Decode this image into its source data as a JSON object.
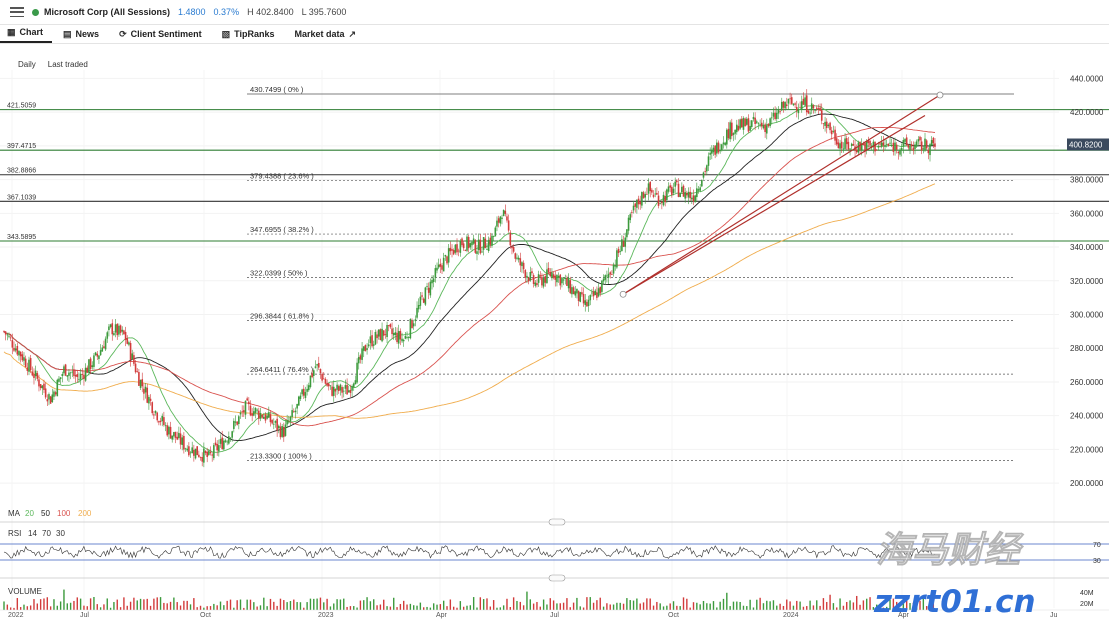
{
  "header": {
    "instrument": "Microsoft Corp (All Sessions)",
    "change": "1.4800",
    "change_pct": "0.37%",
    "high": "H 402.8400",
    "low": "L 395.7600"
  },
  "tabs": [
    {
      "label": "Chart",
      "icon": "chart-icon"
    },
    {
      "label": "News",
      "icon": "news-icon"
    },
    {
      "label": "Client Sentiment",
      "icon": "sentiment-icon"
    },
    {
      "label": "TipRanks",
      "icon": "tipranks-icon"
    },
    {
      "label": "Market data",
      "icon": "external-link-icon"
    }
  ],
  "settings": {
    "interval": "Daily",
    "price_type": "Last traded"
  },
  "indicators": {
    "ma_label": "MA",
    "ma_periods": [
      "20",
      "50",
      "100",
      "200"
    ],
    "ma_colors": [
      "#5cb85c",
      "#222222",
      "#d9534f",
      "#f0ad4e"
    ],
    "rsi_label": "RSI",
    "rsi_params": [
      "14",
      "70",
      "30"
    ],
    "rsi_levels": [
      "70",
      "30"
    ],
    "volume_label": "VOLUME",
    "volume_scale": [
      "40M",
      "20M"
    ]
  },
  "chart_data": {
    "type": "candlestick",
    "x_ticks": [
      "2022",
      "Jul",
      "Oct",
      "2023",
      "Apr",
      "Jul",
      "Oct",
      "2024",
      "Apr",
      "Ju"
    ],
    "y_ticks": [
      "440.0000",
      "420.0000",
      "400.0000",
      "380.0000",
      "360.0000",
      "340.0000",
      "320.0000",
      "300.0000",
      "280.0000",
      "260.0000",
      "240.0000",
      "220.0000",
      "200.0000"
    ],
    "ylim": [
      190,
      445
    ],
    "current_price": "400.8200",
    "fib_levels": [
      {
        "value": 430.7499,
        "label": "430.7499 ( 0% )"
      },
      {
        "value": 379.4388,
        "label": "379.4388 ( 23.6% )"
      },
      {
        "value": 347.6955,
        "label": "347.6955 ( 38.2% )"
      },
      {
        "value": 322.0399,
        "label": "322.0399 ( 50% )"
      },
      {
        "value": 296.3844,
        "label": "296.3844 ( 61.8% )"
      },
      {
        "value": 264.6411,
        "label": "264.6411 ( 76.4% )"
      },
      {
        "value": 213.33,
        "label": "213.3300 ( 100% )"
      }
    ],
    "horizontal_levels": [
      {
        "value": 421.5059,
        "label": "421.5059",
        "color": "#2e7d32"
      },
      {
        "value": 397.4715,
        "label": "397.4715",
        "color": "#2e7d32"
      },
      {
        "value": 382.8866,
        "label": "382.8866",
        "color": "#333333"
      },
      {
        "value": 367.1039,
        "label": "367.1039",
        "color": "#333333"
      },
      {
        "value": 343.5895,
        "label": "343.5895",
        "color": "#2e7d32"
      }
    ],
    "price_path": [
      [
        0,
        290
      ],
      [
        0.02,
        275
      ],
      [
        0.035,
        262
      ],
      [
        0.05,
        250
      ],
      [
        0.065,
        268
      ],
      [
        0.08,
        262
      ],
      [
        0.1,
        275
      ],
      [
        0.115,
        292
      ],
      [
        0.13,
        287
      ],
      [
        0.145,
        262
      ],
      [
        0.16,
        245
      ],
      [
        0.175,
        232
      ],
      [
        0.195,
        222
      ],
      [
        0.22,
        215
      ],
      [
        0.24,
        228
      ],
      [
        0.26,
        245
      ],
      [
        0.28,
        240
      ],
      [
        0.3,
        230
      ],
      [
        0.315,
        245
      ],
      [
        0.335,
        270
      ],
      [
        0.35,
        255
      ],
      [
        0.37,
        255
      ],
      [
        0.39,
        283
      ],
      [
        0.41,
        290
      ],
      [
        0.43,
        285
      ],
      [
        0.45,
        310
      ],
      [
        0.47,
        330
      ],
      [
        0.49,
        343
      ],
      [
        0.51,
        340
      ],
      [
        0.525,
        345
      ],
      [
        0.535,
        362
      ],
      [
        0.55,
        333
      ],
      [
        0.57,
        318
      ],
      [
        0.59,
        325
      ],
      [
        0.61,
        315
      ],
      [
        0.625,
        305
      ],
      [
        0.64,
        315
      ],
      [
        0.655,
        330
      ],
      [
        0.665,
        343
      ],
      [
        0.675,
        360
      ],
      [
        0.69,
        375
      ],
      [
        0.705,
        368
      ],
      [
        0.72,
        375
      ],
      [
        0.74,
        370
      ],
      [
        0.76,
        395
      ],
      [
        0.78,
        410
      ],
      [
        0.8,
        413
      ],
      [
        0.82,
        412
      ],
      [
        0.84,
        425
      ],
      [
        0.86,
        425
      ],
      [
        0.875,
        420
      ],
      [
        0.89,
        408
      ],
      [
        0.9,
        400
      ]
    ],
    "volume_scale_max_millions": 50
  },
  "watermark": {
    "line1": "海马财经",
    "line2": "zzrt01.cn"
  }
}
